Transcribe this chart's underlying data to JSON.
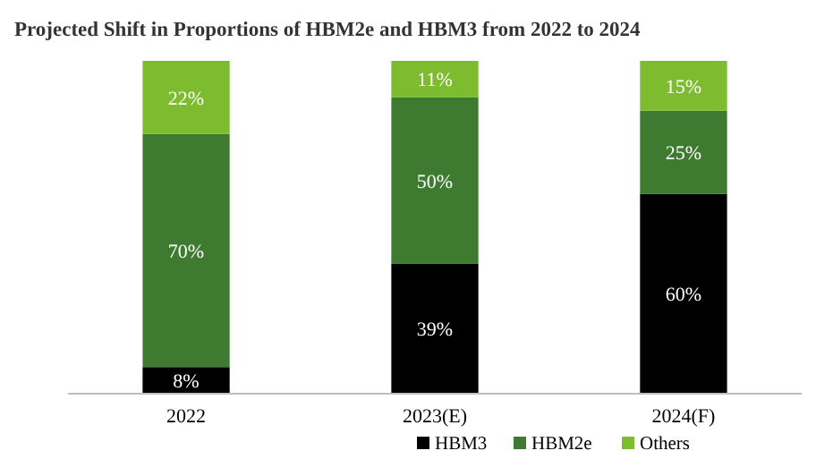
{
  "chart_data": {
    "type": "bar",
    "title": "Projected Shift in Proportions of HBM2e and HBM3 from 2022 to 2024",
    "categories": [
      "2022",
      "2023(E)",
      "2024(F)"
    ],
    "stacked": true,
    "legend": "bottom",
    "series": [
      {
        "name": "HBM3",
        "color": "#000000",
        "values": [
          8,
          39,
          60
        ],
        "value_labels": [
          "8%",
          "39%",
          "60%"
        ]
      },
      {
        "name": "HBM2e",
        "color": "#3e7b30",
        "values": [
          70,
          50,
          25
        ],
        "value_labels": [
          "70%",
          "50%",
          "25%"
        ]
      },
      {
        "name": "Others",
        "color": "#7cbc2e",
        "values": [
          22,
          11,
          15
        ],
        "value_labels": [
          "22%",
          "11%",
          "15%"
        ]
      }
    ]
  }
}
